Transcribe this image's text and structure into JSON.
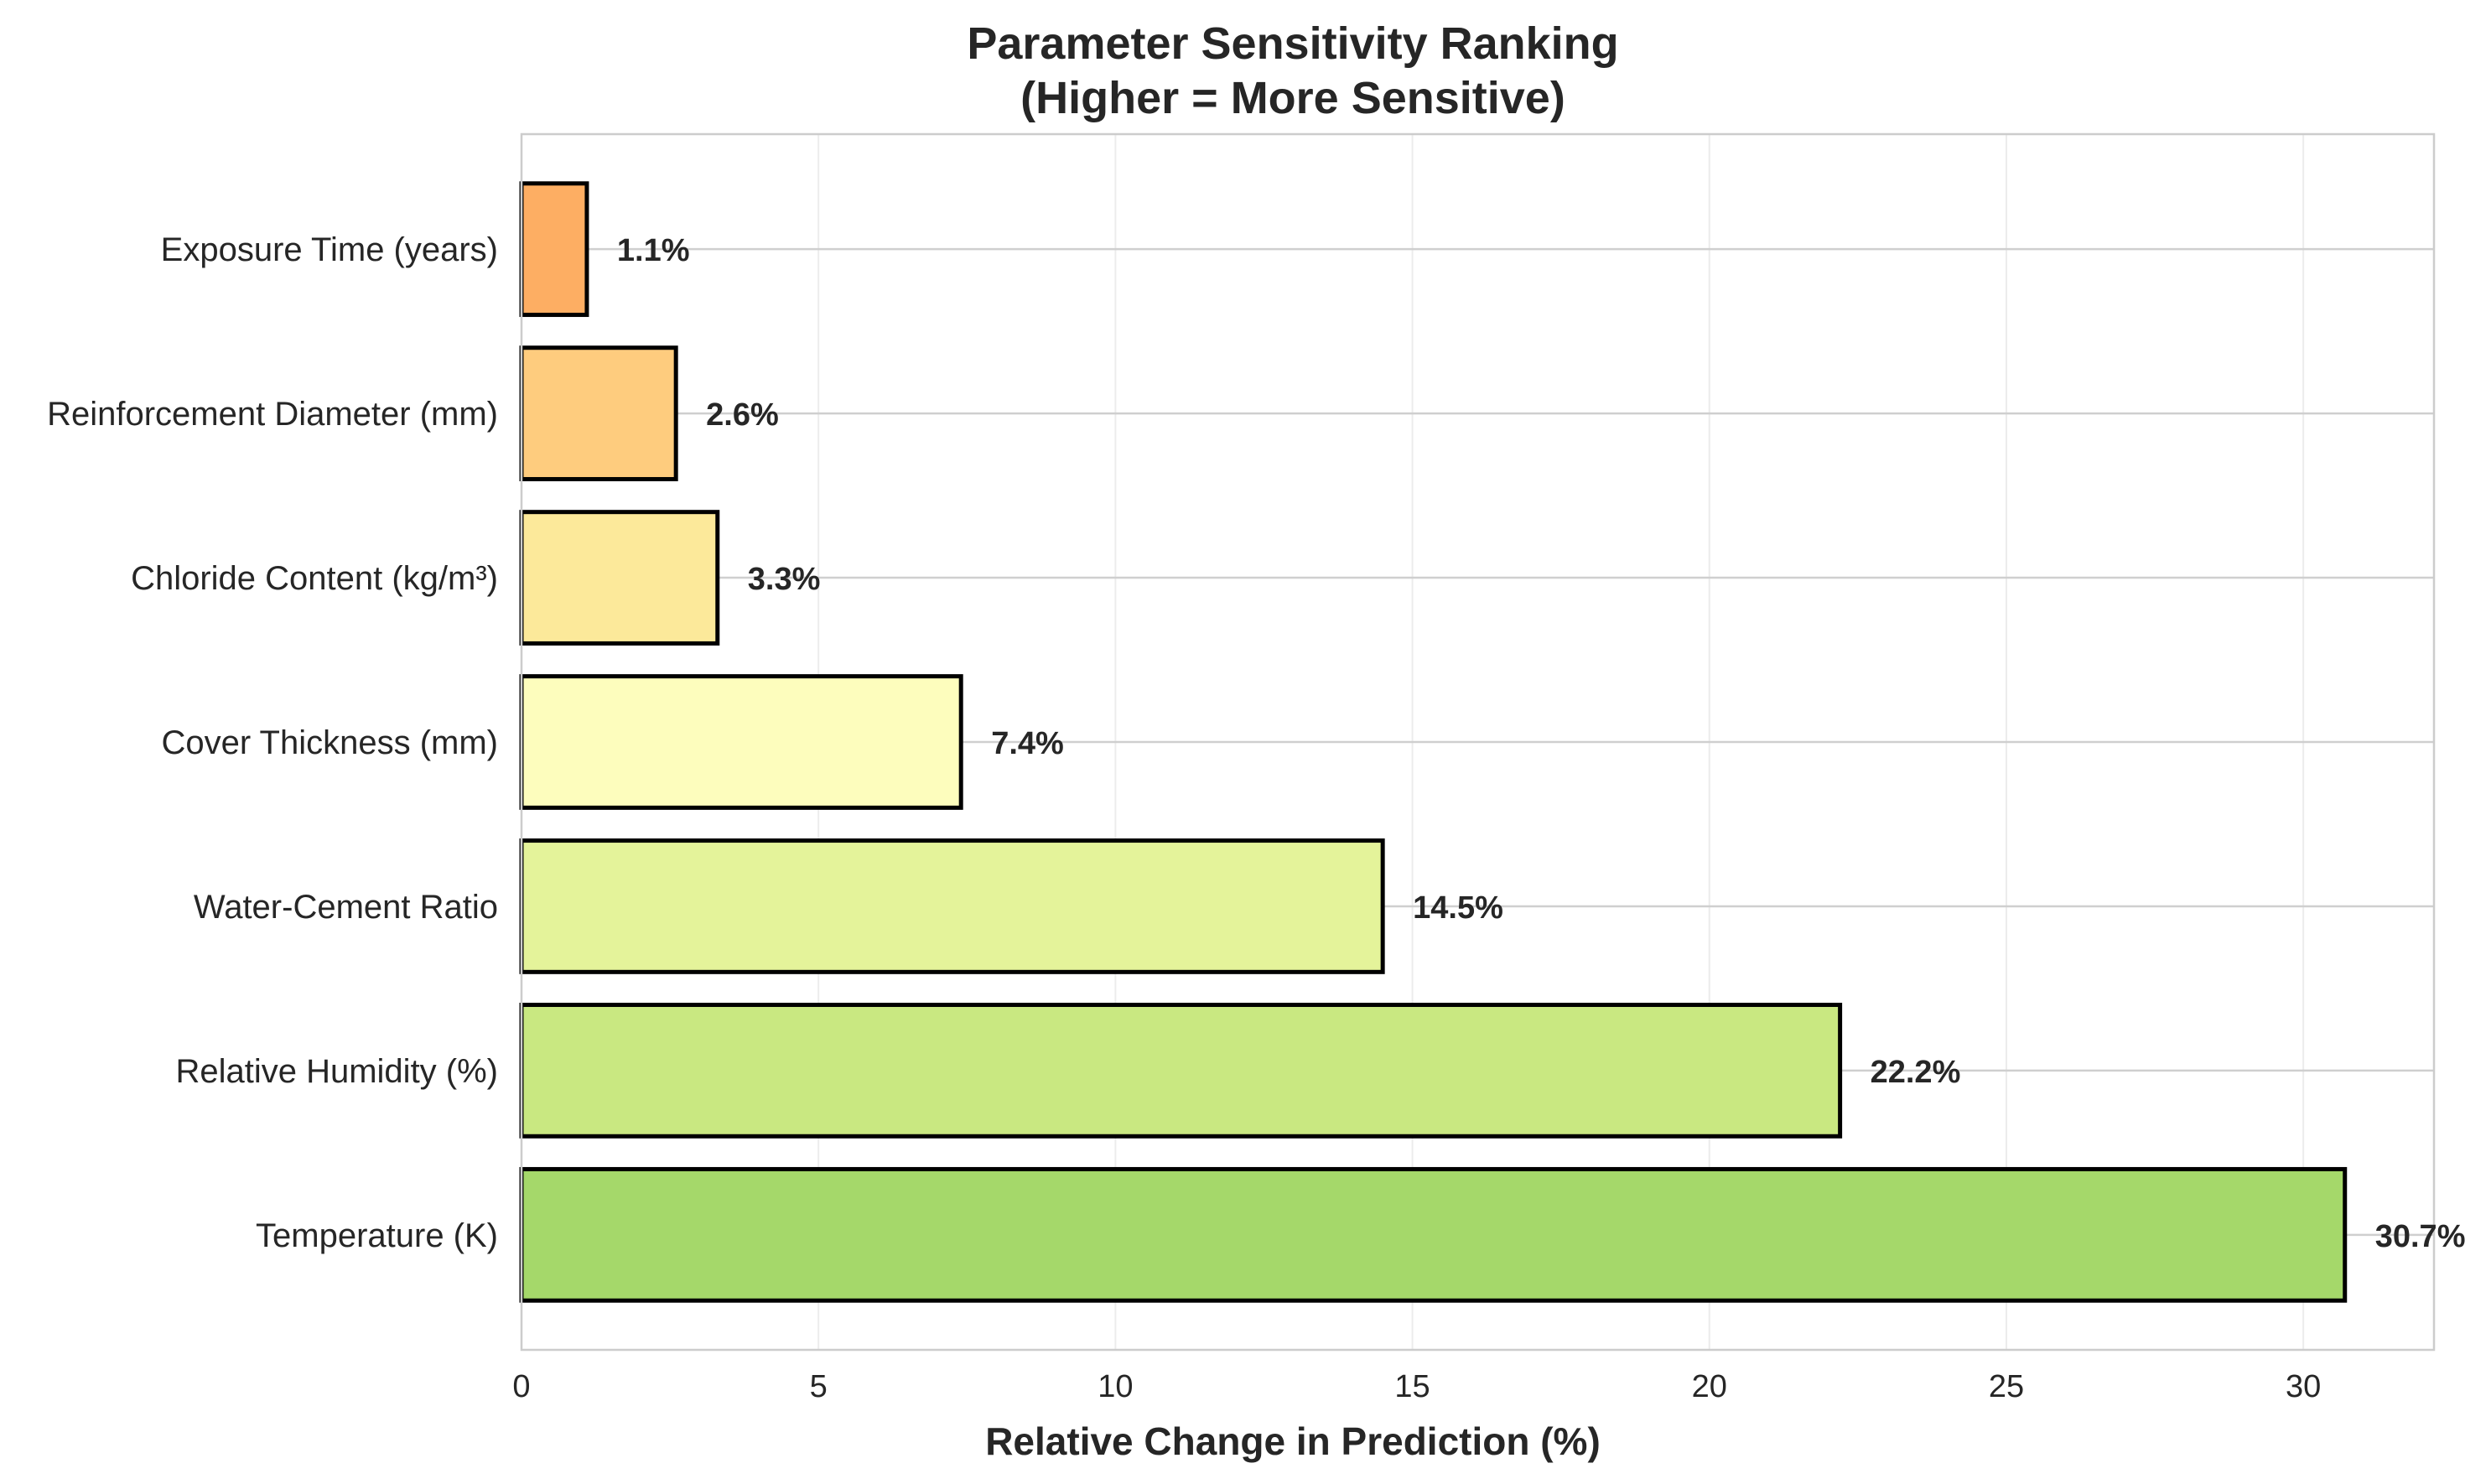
{
  "chart_data": {
    "type": "bar",
    "orientation": "horizontal",
    "title": "Parameter Sensitivity Ranking",
    "subtitle": "(Higher = More Sensitive)",
    "xlabel": "Relative Change in Prediction (%)",
    "ylabel": "",
    "xlim": [
      0,
      32.2
    ],
    "xticks": [
      0,
      5,
      10,
      15,
      20,
      25,
      30
    ],
    "grid": true,
    "categories": [
      "Temperature (K)",
      "Relative Humidity (%)",
      "Water-Cement Ratio",
      "Cover Thickness (mm)",
      "Chloride Content (kg/m³)",
      "Reinforcement Diameter (mm)",
      "Exposure Time (years)"
    ],
    "values": [
      30.7,
      22.2,
      14.5,
      7.4,
      3.3,
      2.6,
      1.1
    ],
    "value_labels": [
      "30.7%",
      "22.2%",
      "14.5%",
      "7.4%",
      "3.3%",
      "2.6%",
      "1.1%"
    ],
    "colors": [
      "#a5d86a",
      "#c9e881",
      "#e4f39a",
      "#fdfdbd",
      "#fce99a",
      "#fecc7e",
      "#fdae63"
    ]
  }
}
